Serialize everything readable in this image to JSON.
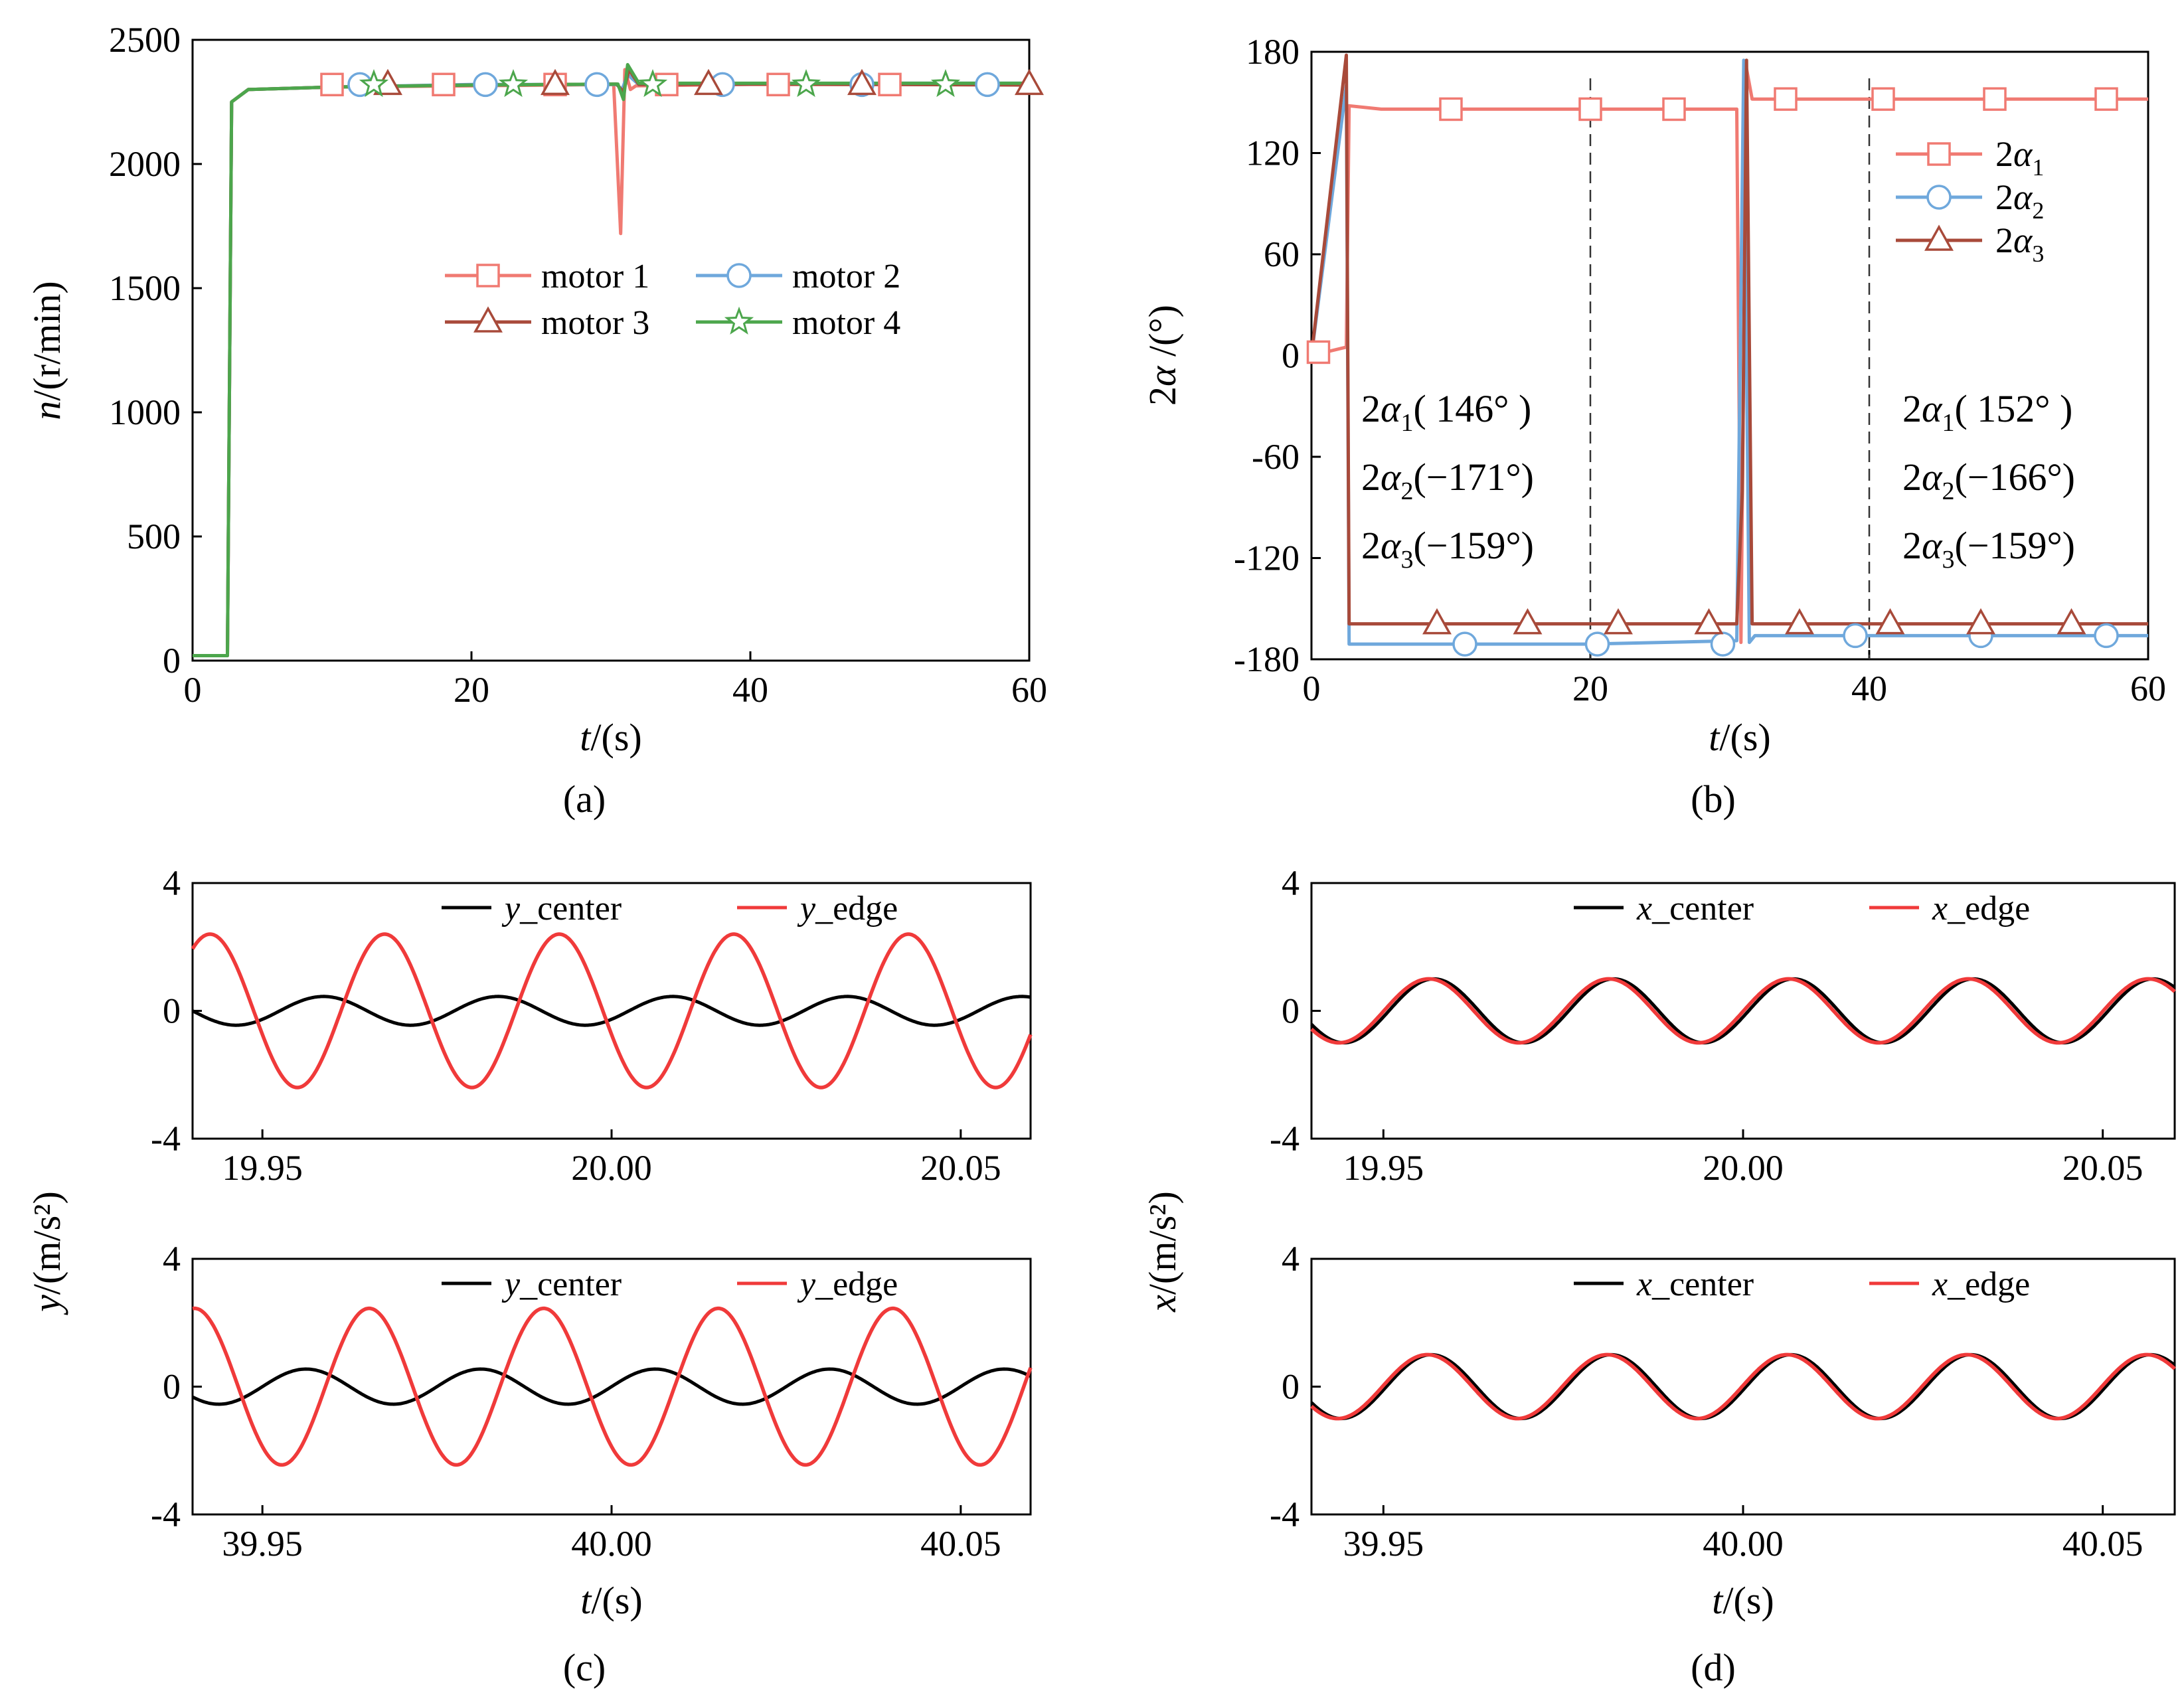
{
  "captions": [
    "(a)",
    "(b)",
    "(c)",
    "(d)"
  ],
  "chart_data": [
    {
      "id": "a",
      "type": "line",
      "xlabel": "t/(s)",
      "ylabel": "n/(r/min)",
      "xlim": [
        0,
        60
      ],
      "ylim": [
        0,
        2500
      ],
      "xticks": [
        "0",
        "20",
        "40",
        "60"
      ],
      "yticks": [
        "0",
        "500",
        "1000",
        "1500",
        "2000",
        "2500"
      ],
      "legend_position": "center",
      "series": [
        {
          "name": "motor 1",
          "color": "#F07A72",
          "marker": "square",
          "x": [
            0,
            2.5,
            2.8,
            4,
            10,
            20,
            30.2,
            30.7,
            31.0,
            31.4,
            31.8,
            40,
            50,
            60
          ],
          "y": [
            20,
            20,
            2250,
            2300,
            2310,
            2315,
            2320,
            1720,
            2380,
            2300,
            2315,
            2320,
            2320,
            2320
          ]
        },
        {
          "name": "motor 2",
          "color": "#6FA8DC",
          "marker": "circle",
          "x": [
            0,
            2.5,
            2.8,
            4,
            10,
            20,
            30.4,
            30.8,
            31.2,
            32,
            40,
            50,
            60
          ],
          "y": [
            20,
            20,
            2250,
            2300,
            2310,
            2320,
            2320,
            2300,
            2360,
            2320,
            2322,
            2325,
            2325
          ]
        },
        {
          "name": "motor 3",
          "color": "#A84A3A",
          "marker": "triangle",
          "x": [
            0,
            2.5,
            2.8,
            4,
            10,
            20,
            30.4,
            30.9,
            31.3,
            32,
            40,
            50,
            60
          ],
          "y": [
            20,
            20,
            2250,
            2300,
            2310,
            2318,
            2322,
            2290,
            2380,
            2320,
            2322,
            2320,
            2318
          ]
        },
        {
          "name": "motor 4",
          "color": "#4CA64C",
          "marker": "star",
          "x": [
            0,
            2.5,
            2.8,
            4,
            10,
            20,
            30.5,
            30.9,
            31.2,
            32,
            40,
            50,
            60
          ],
          "y": [
            20,
            20,
            2250,
            2300,
            2310,
            2318,
            2322,
            2260,
            2400,
            2325,
            2325,
            2325,
            2325
          ]
        }
      ]
    },
    {
      "id": "b",
      "type": "line",
      "xlabel": "t/(s)",
      "ylabel": "2α/(°)",
      "xlim": [
        0,
        60
      ],
      "ylim": [
        -180,
        180
      ],
      "xticks": [
        "0",
        "20",
        "40",
        "60"
      ],
      "yticks": [
        "-180",
        "-120",
        "-60",
        "0",
        "60",
        "120",
        "180"
      ],
      "reference_lines_x": [
        20,
        40
      ],
      "legend_position": "top-right",
      "series": [
        {
          "name": "2α",
          "subscript": "1",
          "color": "#F07A72",
          "marker": "square",
          "x": [
            0,
            2.5,
            2.7,
            5,
            10,
            20,
            30.5,
            30.8,
            31.2,
            31.6,
            33,
            40,
            50,
            60
          ],
          "y": [
            0,
            5,
            148,
            146,
            146,
            146,
            146,
            -170,
            170,
            152,
            152,
            152,
            152,
            152
          ]
        },
        {
          "name": "2α",
          "subscript": "2",
          "color": "#6FA8DC",
          "marker": "circle",
          "x": [
            0,
            2.5,
            2.7,
            5,
            10,
            20,
            30.5,
            31.0,
            31.4,
            31.8,
            33,
            40,
            50,
            60
          ],
          "y": [
            0,
            160,
            -171,
            -171,
            -171,
            -171,
            -169,
            175,
            -170,
            -166,
            -166,
            -166,
            -166,
            -166
          ]
        },
        {
          "name": "2α",
          "subscript": "3",
          "color": "#A84A3A",
          "marker": "triangle",
          "x": [
            0,
            2.5,
            2.7,
            5,
            10,
            20,
            30.5,
            30.9,
            31.2,
            31.6,
            33,
            40,
            50,
            60
          ],
          "y": [
            0,
            178,
            -159,
            -159,
            -159,
            -159,
            -159,
            -80,
            175,
            -159,
            -159,
            -159,
            -159,
            -159
          ]
        }
      ],
      "annotations": [
        {
          "prefix": "2α",
          "sub": "1",
          "value": "( 146° )"
        },
        {
          "prefix": "2α",
          "sub": "2",
          "value": "(−171°)"
        },
        {
          "prefix": "2α",
          "sub": "3",
          "value": "(−159°)"
        },
        {
          "prefix": "2α",
          "sub": "1",
          "value": "( 152° )"
        },
        {
          "prefix": "2α",
          "sub": "2",
          "value": "(−166°)"
        },
        {
          "prefix": "2α",
          "sub": "3",
          "value": "(−159°)"
        }
      ]
    },
    {
      "id": "c",
      "type": "line",
      "ylabel": "y/(m/s²)",
      "xlabel": "t/(s)",
      "subplots": [
        {
          "xlim": [
            19.94,
            20.06
          ],
          "ylim": [
            -4,
            4
          ],
          "xticks": [
            "19.95",
            "20.00",
            "20.05"
          ],
          "yticks": [
            "-4",
            "0",
            "4"
          ],
          "frequency_hz": 40,
          "series": [
            {
              "name": "y_center",
              "color": "#000000",
              "amplitude": 0.45,
              "phase_deg": 180
            },
            {
              "name": "y_edge",
              "color": "#F03A3A",
              "amplitude": 2.4,
              "phase_deg": 54
            }
          ]
        },
        {
          "xlim": [
            39.94,
            40.06
          ],
          "ylim": [
            -4,
            4
          ],
          "xticks": [
            "39.95",
            "40.00",
            "40.05"
          ],
          "yticks": [
            "-4",
            "0",
            "4"
          ],
          "frequency_hz": 40,
          "series": [
            {
              "name": "y_center",
              "color": "#000000",
              "amplitude": 0.55,
              "phase_deg": 216
            },
            {
              "name": "y_edge",
              "color": "#F03A3A",
              "amplitude": 2.45,
              "phase_deg": 86
            }
          ]
        }
      ]
    },
    {
      "id": "d",
      "type": "line",
      "ylabel": "x/(m/s²)",
      "xlabel": "t/(s)",
      "subplots": [
        {
          "xlim": [
            19.94,
            20.06
          ],
          "ylim": [
            -4,
            4
          ],
          "xticks": [
            "19.95",
            "20.00",
            "20.05"
          ],
          "yticks": [
            "-4",
            "0",
            "4"
          ],
          "frequency_hz": 40,
          "series": [
            {
              "name": "x_center",
              "color": "#000000",
              "amplitude": 1.0,
              "phase_deg": 205
            },
            {
              "name": "x_edge",
              "color": "#F03A3A",
              "amplitude": 1.0,
              "phase_deg": 215
            }
          ]
        },
        {
          "xlim": [
            39.94,
            40.06
          ],
          "ylim": [
            -4,
            4
          ],
          "xticks": [
            "39.95",
            "40.00",
            "40.05"
          ],
          "yticks": [
            "-4",
            "0",
            "4"
          ],
          "frequency_hz": 40,
          "series": [
            {
              "name": "x_center",
              "color": "#000000",
              "amplitude": 1.0,
              "phase_deg": 210
            },
            {
              "name": "x_edge",
              "color": "#F03A3A",
              "amplitude": 1.0,
              "phase_deg": 218
            }
          ]
        }
      ]
    }
  ]
}
